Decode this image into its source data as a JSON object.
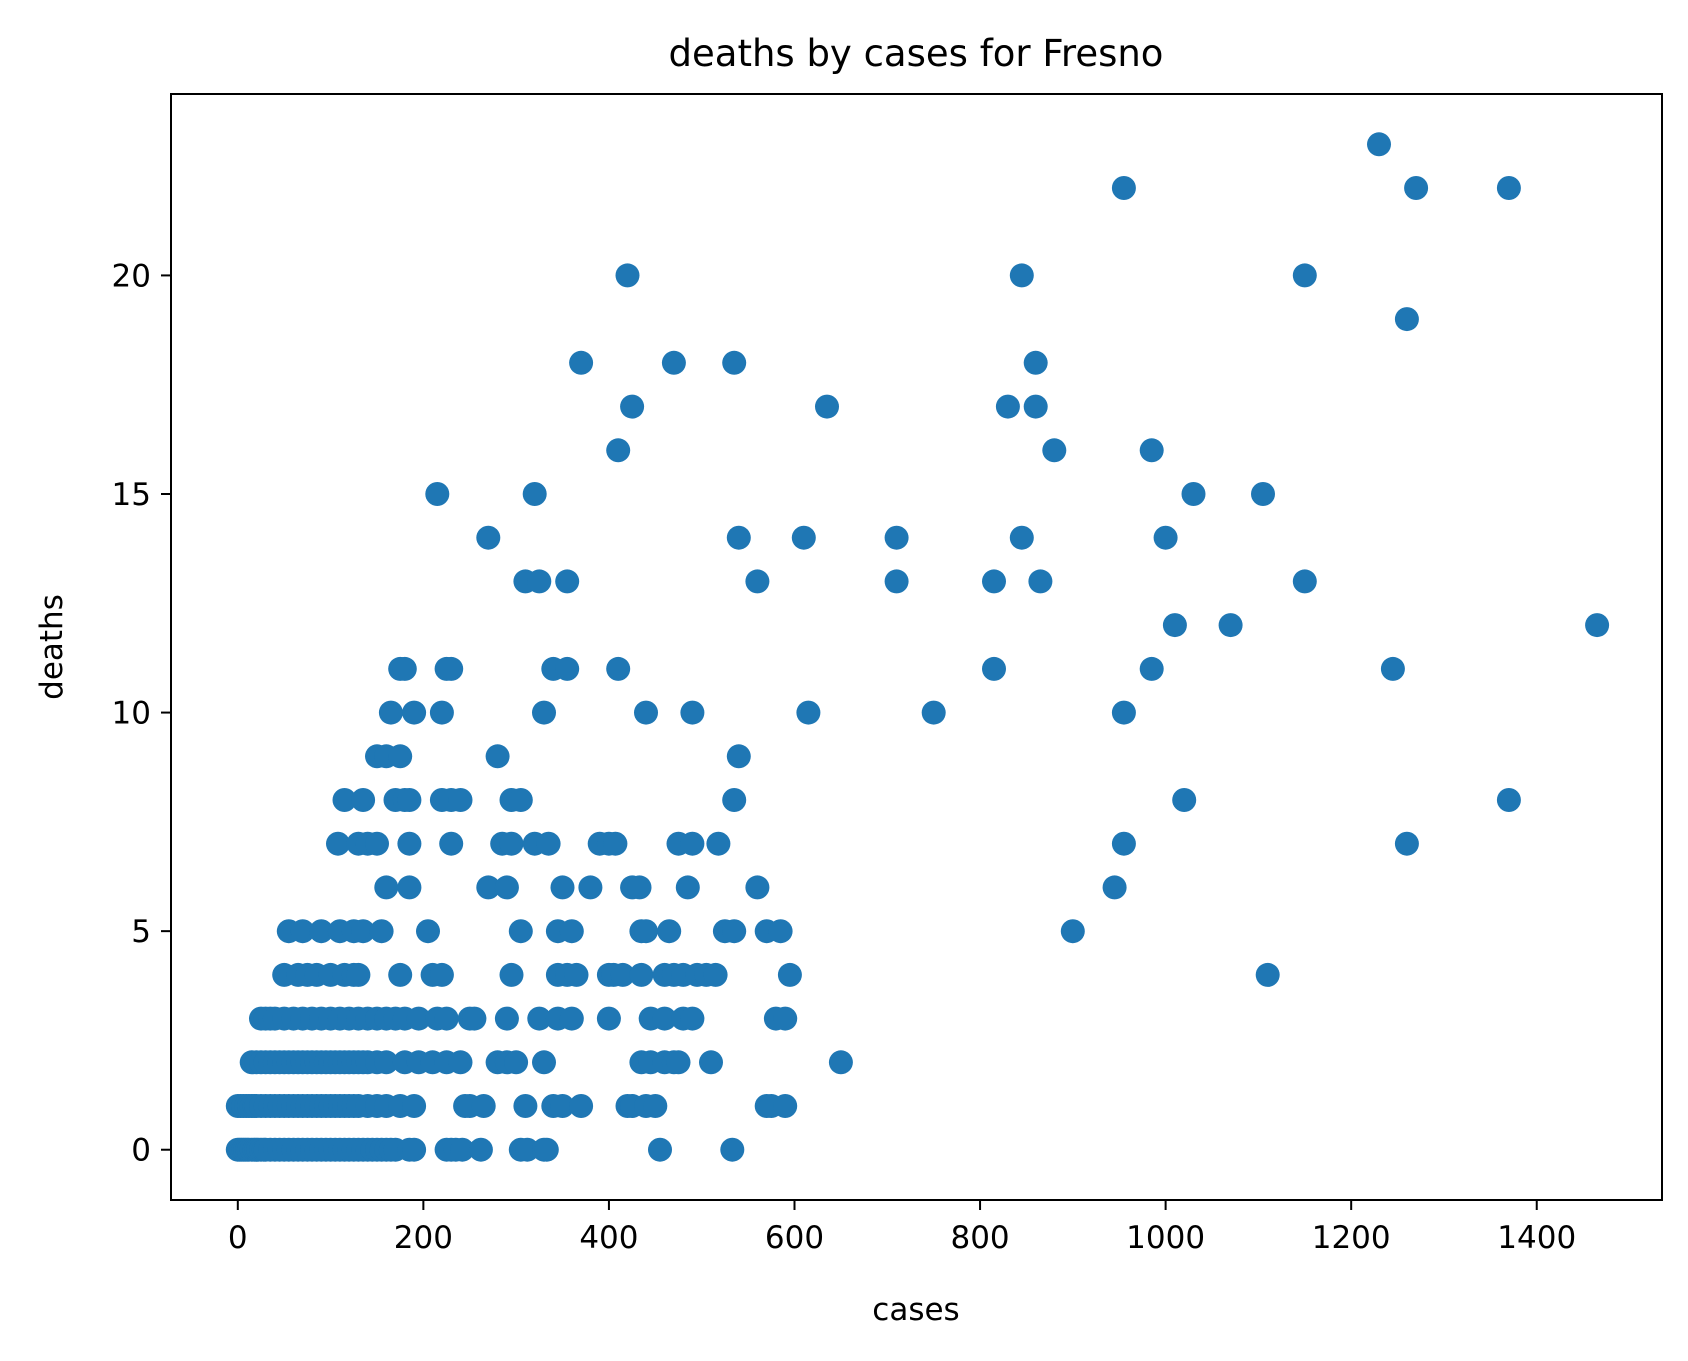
{
  "chart_data": {
    "type": "scatter",
    "title": "deaths by cases for Fresno",
    "xlabel": "cases",
    "ylabel": "deaths",
    "xlim": [
      -72,
      1535
    ],
    "ylim": [
      -1.15,
      24.15
    ],
    "xticks": [
      0,
      200,
      400,
      600,
      800,
      1000,
      1200,
      1400
    ],
    "yticks": [
      0,
      5,
      10,
      15,
      20
    ],
    "grid": false,
    "legend": "none",
    "marker_color": "#1f77b4",
    "series": [
      {
        "x": [
          0,
          2,
          4,
          6,
          8,
          10,
          12,
          15,
          18,
          20,
          22,
          25,
          28,
          30,
          35,
          40,
          45,
          50,
          55,
          60,
          65,
          70,
          75,
          80,
          85,
          90,
          95,
          100,
          105,
          110,
          115,
          120,
          125,
          130,
          135,
          140,
          145,
          150,
          155,
          160,
          165,
          170,
          185,
          190,
          225,
          230,
          235,
          242,
          262,
          305,
          312,
          330,
          333,
          455,
          533,
          0,
          3,
          6,
          9,
          12,
          15,
          18,
          20,
          25,
          30,
          35,
          40,
          45,
          50,
          55,
          60,
          65,
          70,
          75,
          80,
          85,
          90,
          95,
          100,
          105,
          110,
          115,
          120,
          125,
          130,
          140,
          150,
          160,
          175,
          190,
          245,
          250,
          265,
          310,
          340,
          350,
          370,
          420,
          425,
          440,
          450,
          570,
          575,
          590,
          15,
          20,
          25,
          30,
          35,
          40,
          45,
          50,
          55,
          60,
          65,
          70,
          75,
          80,
          85,
          90,
          95,
          100,
          105,
          110,
          115,
          120,
          125,
          130,
          135,
          140,
          150,
          160,
          180,
          195,
          210,
          225,
          240,
          280,
          290,
          300,
          330,
          435,
          445,
          460,
          470,
          475,
          510,
          650,
          25,
          30,
          35,
          40,
          50,
          60,
          70,
          80,
          90,
          100,
          110,
          120,
          130,
          140,
          150,
          160,
          170,
          180,
          195,
          215,
          225,
          250,
          255,
          290,
          325,
          345,
          360,
          400,
          445,
          460,
          480,
          490,
          580,
          590,
          50,
          65,
          75,
          85,
          100,
          115,
          125,
          130,
          175,
          210,
          220,
          295,
          345,
          355,
          365,
          400,
          405,
          415,
          435,
          460,
          470,
          480,
          495,
          505,
          515,
          595,
          55,
          70,
          90,
          110,
          125,
          135,
          155,
          205,
          305,
          345,
          360,
          435,
          440,
          465,
          525,
          535,
          570,
          585,
          160,
          185,
          270,
          290,
          350,
          380,
          425,
          433,
          485,
          560,
          108,
          130,
          140,
          150,
          185,
          230,
          285,
          295,
          320,
          335,
          390,
          400,
          407,
          475,
          490,
          518,
          115,
          135,
          170,
          180,
          185,
          220,
          230,
          240,
          295,
          305,
          535,
          150,
          160,
          175,
          280,
          540,
          165,
          190,
          220,
          330,
          440,
          490,
          615,
          750,
          955,
          175,
          180,
          225,
          230,
          340,
          355,
          410,
          815,
          985,
          1245,
          310,
          325,
          355,
          560,
          710,
          815,
          865,
          1150,
          270,
          540,
          610,
          710,
          845,
          1000,
          215,
          320,
          1030,
          1105,
          410,
          880,
          985,
          425,
          635,
          830,
          860,
          370,
          470,
          535,
          860,
          1260,
          420,
          845,
          1150,
          955,
          1270,
          1370,
          1230,
          1010,
          1070,
          1465,
          1020,
          1370,
          900,
          945,
          955,
          1260,
          1110
        ],
        "y": [
          0,
          0,
          0,
          0,
          0,
          0,
          0,
          0,
          0,
          0,
          0,
          0,
          0,
          0,
          0,
          0,
          0,
          0,
          0,
          0,
          0,
          0,
          0,
          0,
          0,
          0,
          0,
          0,
          0,
          0,
          0,
          0,
          0,
          0,
          0,
          0,
          0,
          0,
          0,
          0,
          0,
          0,
          0,
          0,
          0,
          0,
          0,
          0,
          0,
          0,
          0,
          0,
          0,
          0,
          0,
          1,
          1,
          1,
          1,
          1,
          1,
          1,
          1,
          1,
          1,
          1,
          1,
          1,
          1,
          1,
          1,
          1,
          1,
          1,
          1,
          1,
          1,
          1,
          1,
          1,
          1,
          1,
          1,
          1,
          1,
          1,
          1,
          1,
          1,
          1,
          1,
          1,
          1,
          1,
          1,
          1,
          1,
          1,
          1,
          1,
          1,
          1,
          1,
          1,
          2,
          2,
          2,
          2,
          2,
          2,
          2,
          2,
          2,
          2,
          2,
          2,
          2,
          2,
          2,
          2,
          2,
          2,
          2,
          2,
          2,
          2,
          2,
          2,
          2,
          2,
          2,
          2,
          2,
          2,
          2,
          2,
          2,
          2,
          2,
          2,
          2,
          2,
          2,
          2,
          2,
          2,
          2,
          2,
          3,
          3,
          3,
          3,
          3,
          3,
          3,
          3,
          3,
          3,
          3,
          3,
          3,
          3,
          3,
          3,
          3,
          3,
          3,
          3,
          3,
          3,
          3,
          3,
          3,
          3,
          3,
          3,
          3,
          3,
          3,
          3,
          3,
          3,
          4,
          4,
          4,
          4,
          4,
          4,
          4,
          4,
          4,
          4,
          4,
          4,
          4,
          4,
          4,
          4,
          4,
          4,
          4,
          4,
          4,
          4,
          4,
          4,
          4,
          4,
          5,
          5,
          5,
          5,
          5,
          5,
          5,
          5,
          5,
          5,
          5,
          5,
          5,
          5,
          5,
          5,
          5,
          5,
          6,
          6,
          6,
          6,
          6,
          6,
          6,
          6,
          6,
          6,
          7,
          7,
          7,
          7,
          7,
          7,
          7,
          7,
          7,
          7,
          7,
          7,
          7,
          7,
          7,
          7,
          8,
          8,
          8,
          8,
          8,
          8,
          8,
          8,
          8,
          8,
          8,
          9,
          9,
          9,
          9,
          9,
          10,
          10,
          10,
          10,
          10,
          10,
          10,
          10,
          10,
          11,
          11,
          11,
          11,
          11,
          11,
          11,
          11,
          11,
          11,
          13,
          13,
          13,
          13,
          13,
          13,
          13,
          13,
          14,
          14,
          14,
          14,
          14,
          14,
          15,
          15,
          15,
          15,
          16,
          16,
          16,
          17,
          17,
          17,
          17,
          18,
          18,
          18,
          18,
          19,
          20,
          20,
          20,
          22,
          22,
          22,
          23,
          12,
          12,
          12,
          8,
          8,
          5,
          6,
          7,
          7,
          4
        ]
      }
    ]
  }
}
